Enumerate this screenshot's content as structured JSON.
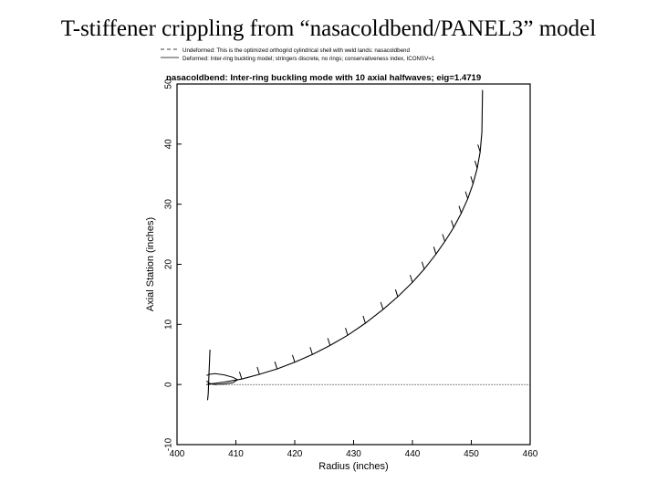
{
  "slide": {
    "title": "T-stiffener crippling from “nasacoldbend/PANEL3” model"
  },
  "chart_data": {
    "type": "line",
    "title": "nasacoldbend: Inter-ring buckling mode with 10 axial halfwaves; eig=1.4719",
    "legend": [
      {
        "name": "Undeformed: This is the optimized orthogrid cylindrical shell with weld lands: nasacoldbend",
        "style": "dashed"
      },
      {
        "name": "Deformed: Inter-ring buckling model; stringers discrete, no rings; conservativeness index, ICONSV=1",
        "style": "solid"
      }
    ],
    "legend_position": "top-left",
    "xlabel": "Radius (inches)",
    "ylabel": "Axial Station (inches)",
    "xlim": [
      400,
      460
    ],
    "ylim": [
      -10,
      50
    ],
    "xticks": [
      "400",
      "410",
      "420",
      "430",
      "440",
      "450",
      "460"
    ],
    "yticks": [
      "-10",
      "0",
      "10",
      "20",
      "30",
      "40",
      "50"
    ],
    "grid": false,
    "series": [
      {
        "style": "dashed",
        "x": [
          405.0,
          460.0
        ],
        "y": [
          0,
          0
        ]
      },
      {
        "style": "solid",
        "x": [
          405.0,
          408.0,
          411.0,
          414.0,
          417.0,
          420.0,
          423.0,
          426.0,
          429.0,
          432.0,
          435.0,
          437.5,
          440.0,
          442.0,
          444.0,
          445.5,
          447.0,
          448.3,
          449.4,
          450.3,
          451.0,
          451.5,
          451.8,
          451.9
        ],
        "y": [
          0.0,
          0.4,
          0.9,
          1.7,
          2.6,
          3.7,
          5.0,
          6.5,
          8.2,
          10.2,
          12.5,
          14.6,
          17.0,
          19.2,
          21.7,
          23.8,
          26.1,
          28.5,
          30.9,
          33.4,
          36.0,
          38.7,
          42.0,
          49.0
        ]
      }
    ],
    "stiffener_ticks": {
      "x": [
        411.0,
        414.0,
        417.0,
        420.0,
        423.0,
        426.0,
        429.0,
        432.0,
        435.0,
        437.5,
        440.0,
        442.0,
        444.0,
        445.5,
        447.0,
        448.3,
        449.4,
        450.3,
        451.0,
        451.5
      ],
      "y": [
        0.9,
        1.7,
        2.6,
        3.7,
        5.0,
        6.5,
        8.2,
        10.2,
        12.5,
        14.6,
        17.0,
        19.2,
        21.7,
        23.8,
        26.1,
        28.5,
        30.9,
        33.4,
        36.0,
        38.7
      ]
    },
    "weld_land": {
      "x": [
        405.0,
        405.5,
        406.5,
        408.0,
        409.5,
        410.3,
        409.5,
        408.0,
        406.5,
        405.5,
        405.0
      ],
      "y": [
        1.5,
        1.7,
        1.8,
        1.6,
        1.2,
        0.8,
        0.3,
        0.1,
        0.0,
        0.2,
        0.6
      ]
    },
    "end_flange": {
      "x": [
        405.6,
        405.5,
        405.4,
        405.3,
        405.2
      ],
      "y": [
        5.8,
        3.5,
        1.0,
        -1.5,
        -2.6
      ]
    }
  }
}
